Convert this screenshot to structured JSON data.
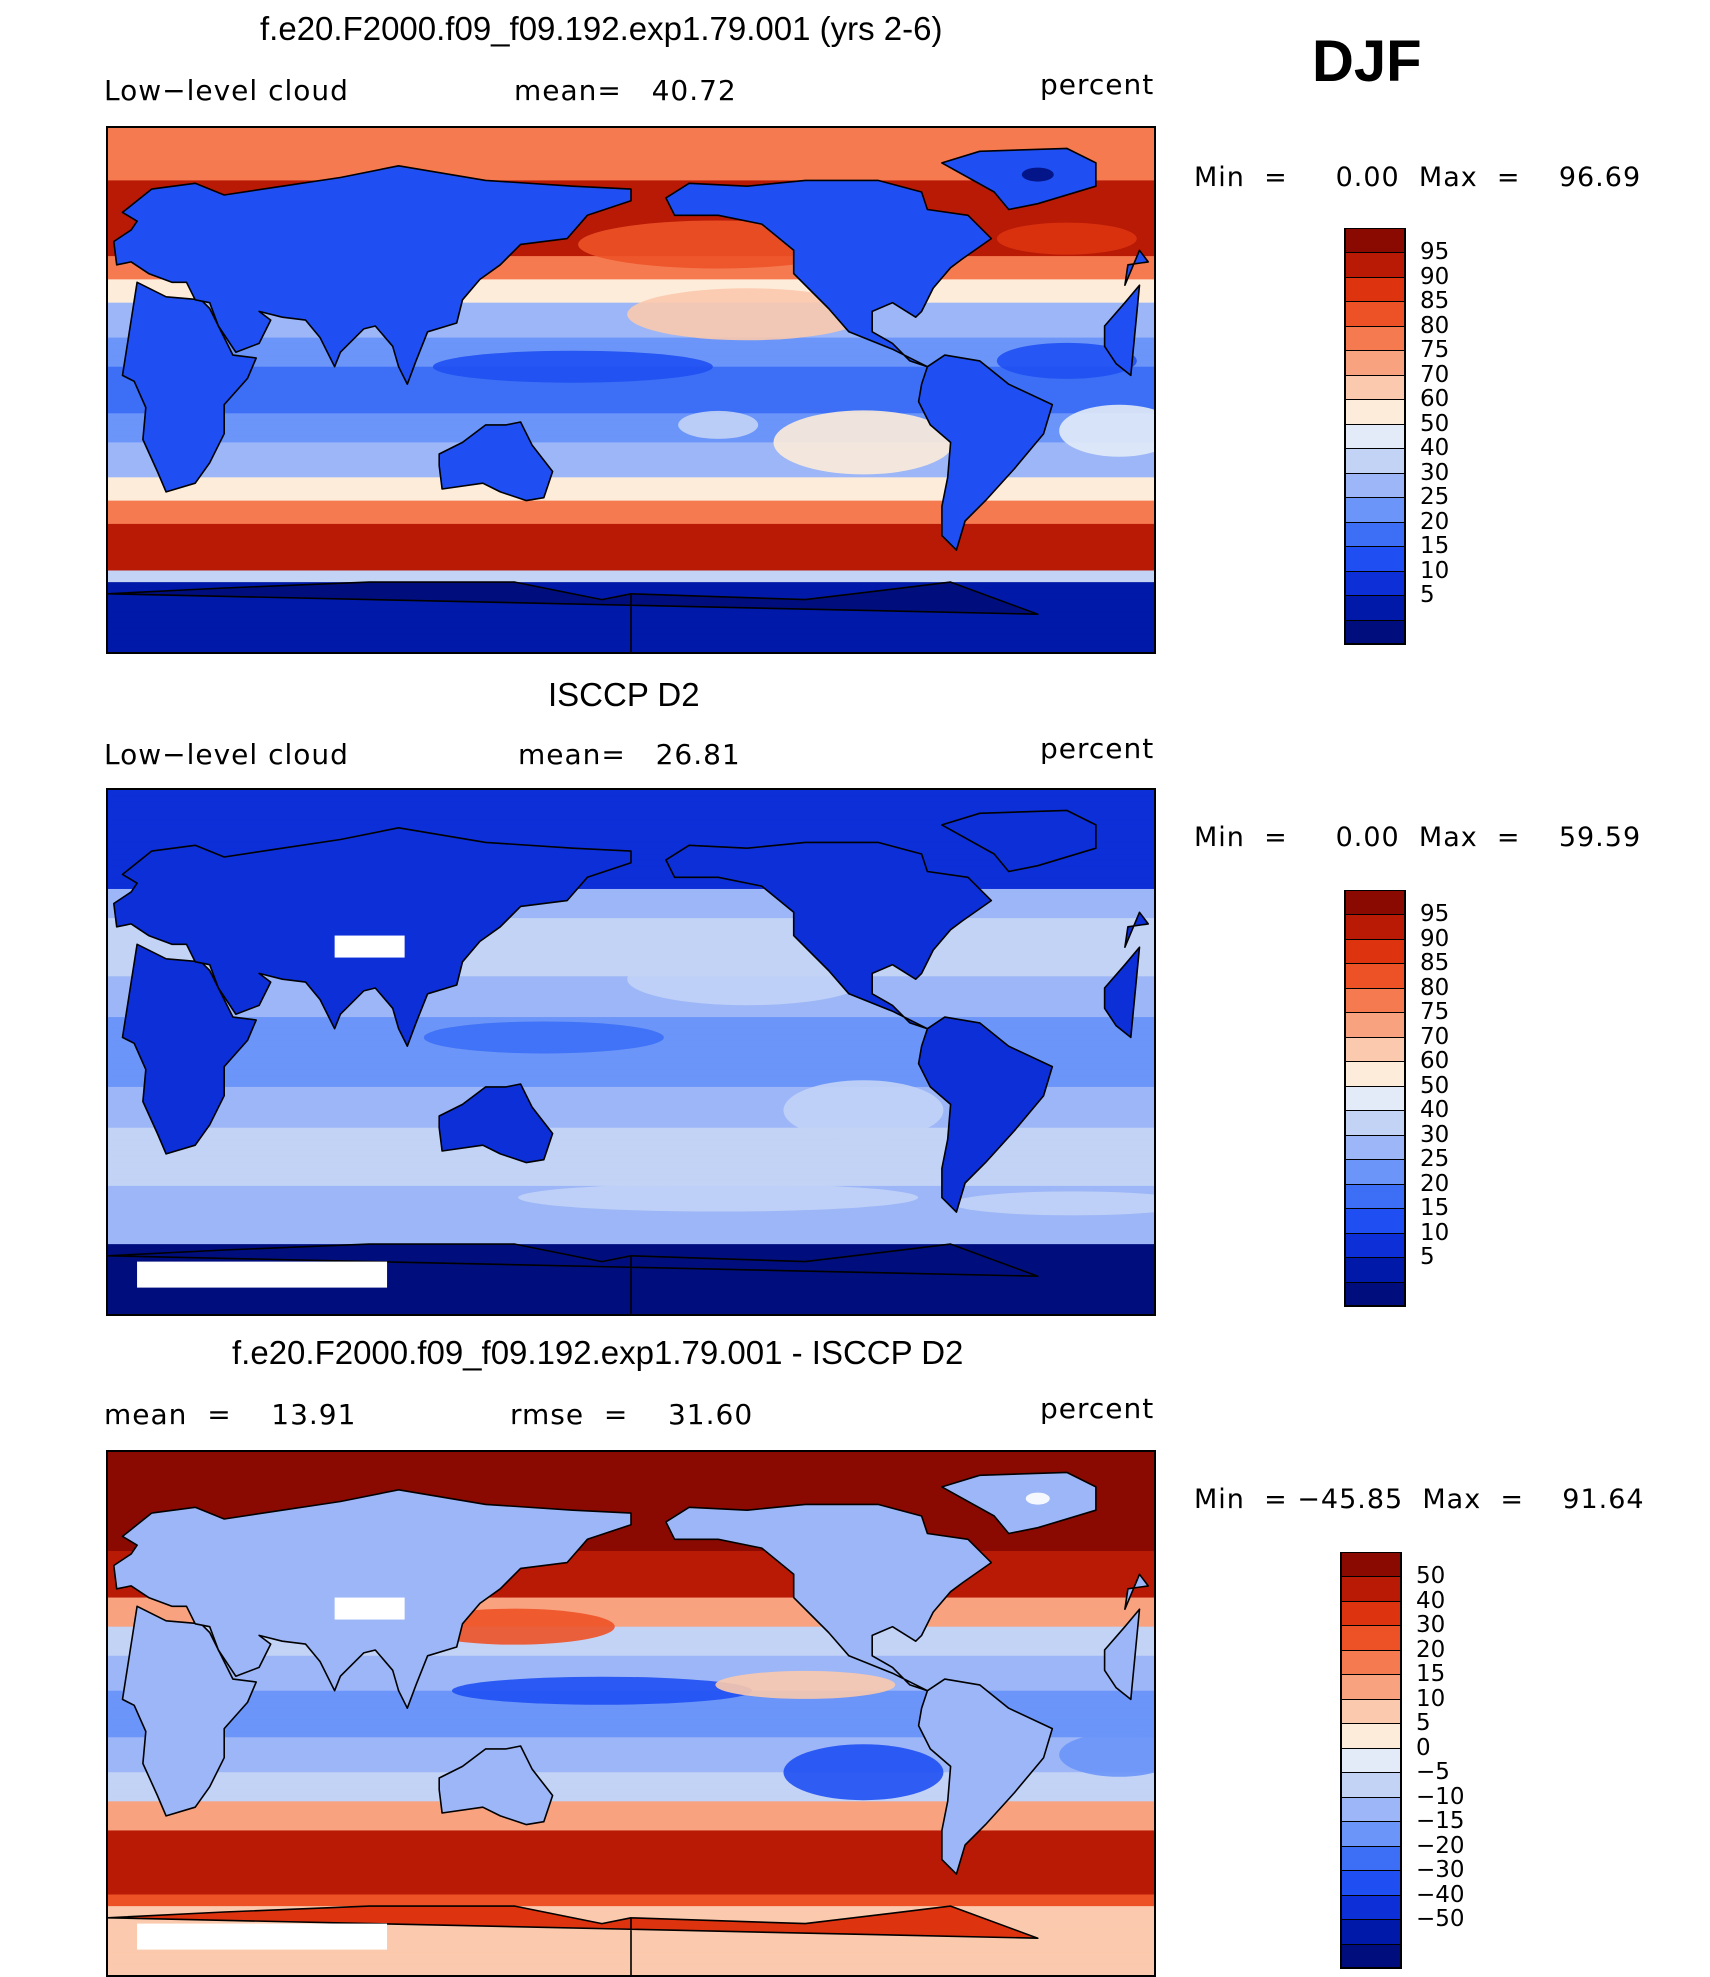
{
  "season": "DJF",
  "colors": {
    "abs_scale": [
      "#000e7d",
      "#0019a8",
      "#0d2fd8",
      "#1f4ff2",
      "#3c6ff6",
      "#6b95f8",
      "#9cb6f7",
      "#c2d3f6",
      "#e2ebf7",
      "#fdecd9",
      "#fbc9ad",
      "#f9a27f",
      "#f57a50",
      "#ed5227",
      "#dd330f",
      "#b81a06",
      "#8a0a02"
    ],
    "diff_scale": [
      "#000e7d",
      "#0019a8",
      "#0d2fd8",
      "#1f4ff2",
      "#3c6ff6",
      "#6b95f8",
      "#9cb6f7",
      "#c2d3f6",
      "#e2ebf7",
      "#fdecd9",
      "#fbc9ad",
      "#f9a27f",
      "#f57a50",
      "#ed5227",
      "#dd330f",
      "#b81a06",
      "#8a0a02"
    ],
    "missing": "#ffffff",
    "coast": "#000000"
  },
  "panels": [
    {
      "title": "f.e20.F2000.f09_f09.192.exp1.79.001 (yrs 2-6)",
      "left_label": "Low−level cloud",
      "mid_label": "mean=   40.72",
      "units": "percent",
      "minmax": "Min  =     0.00  Max  =    96.69",
      "colorbar_labels": [
        "95",
        "90",
        "85",
        "80",
        "75",
        "70",
        "60",
        "50",
        "40",
        "30",
        "25",
        "20",
        "15",
        "10",
        "5"
      ],
      "field": "model"
    },
    {
      "title": "ISCCP D2",
      "left_label": "Low−level cloud",
      "mid_label": "mean=   26.81",
      "units": "percent",
      "minmax": "Min  =     0.00  Max  =    59.59",
      "colorbar_labels": [
        "95",
        "90",
        "85",
        "80",
        "75",
        "70",
        "60",
        "50",
        "40",
        "30",
        "25",
        "20",
        "15",
        "10",
        "5"
      ],
      "field": "obs"
    },
    {
      "title": "f.e20.F2000.f09_f09.192.exp1.79.001 - ISCCP D2",
      "left_label": "mean  =    13.91",
      "mid_label": "rmse  =    31.60",
      "units": "percent",
      "minmax": "Min  = −45.85  Max  =    91.64",
      "colorbar_labels": [
        "50",
        "40",
        "30",
        "20",
        "15",
        "10",
        "5",
        "0",
        "−5",
        "−10",
        "−15",
        "−20",
        "−30",
        "−40",
        "−50"
      ],
      "field": "diff"
    }
  ]
}
